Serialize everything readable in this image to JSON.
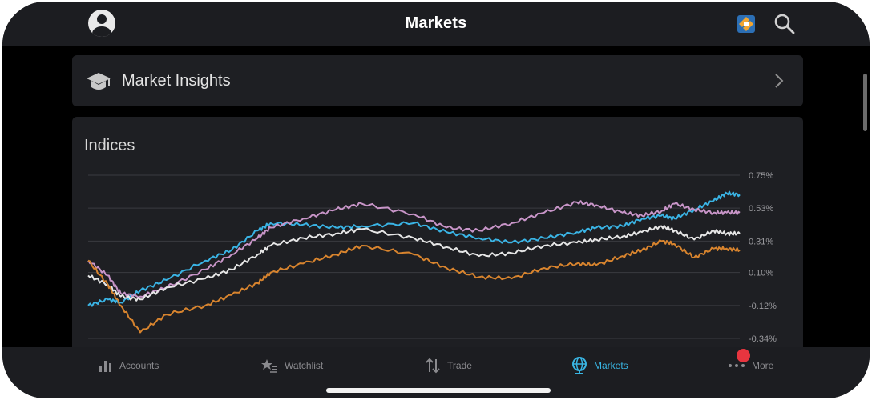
{
  "header": {
    "title": "Markets"
  },
  "icons": {
    "avatar": "avatar-icon",
    "logo": "app-logo-icon",
    "search": "search-icon",
    "insights": "graduation-cap-icon",
    "chevron": "chevron-right-icon"
  },
  "market_insights": {
    "label": "Market Insights"
  },
  "indices": {
    "title": "Indices"
  },
  "chart_data": {
    "type": "line",
    "title": "Indices",
    "y_ticks": [
      "0.75%",
      "0.53%",
      "0.31%",
      "0.10%",
      "-0.12%",
      "-0.34%"
    ],
    "y_tick_values": [
      0.75,
      0.53,
      0.31,
      0.1,
      -0.12,
      -0.34
    ],
    "ylim": [
      -0.34,
      0.75
    ],
    "grid": true,
    "x_range": [
      0,
      100
    ],
    "series": [
      {
        "color": "#3ab4e5",
        "x": [
          0,
          3,
          5,
          8,
          12,
          18,
          22,
          26,
          28,
          33,
          38,
          42,
          50,
          55,
          60,
          65,
          70,
          75,
          78,
          82,
          85,
          88,
          90,
          93,
          96,
          98,
          100
        ],
        "values": [
          -0.12,
          -0.08,
          -0.1,
          -0.02,
          0.05,
          0.18,
          0.25,
          0.38,
          0.43,
          0.42,
          0.4,
          0.41,
          0.43,
          0.37,
          0.33,
          0.3,
          0.33,
          0.37,
          0.4,
          0.41,
          0.46,
          0.48,
          0.46,
          0.52,
          0.58,
          0.63,
          0.62
        ]
      },
      {
        "color": "#c895c8",
        "x": [
          0,
          3,
          5,
          8,
          12,
          18,
          22,
          26,
          28,
          33,
          38,
          42,
          50,
          55,
          60,
          65,
          70,
          75,
          78,
          82,
          85,
          88,
          90,
          93,
          96,
          98,
          100
        ],
        "values": [
          0.18,
          0.08,
          -0.04,
          -0.06,
          0.0,
          0.12,
          0.22,
          0.33,
          0.4,
          0.46,
          0.52,
          0.56,
          0.49,
          0.4,
          0.38,
          0.43,
          0.5,
          0.57,
          0.55,
          0.5,
          0.48,
          0.51,
          0.56,
          0.52,
          0.5,
          0.5,
          0.5
        ]
      },
      {
        "color": "#e6e6e6",
        "x": [
          0,
          3,
          5,
          8,
          12,
          18,
          22,
          26,
          28,
          33,
          38,
          42,
          50,
          55,
          60,
          65,
          70,
          75,
          78,
          82,
          85,
          88,
          90,
          93,
          96,
          98,
          100
        ],
        "values": [
          0.08,
          0.02,
          -0.06,
          -0.08,
          0.0,
          0.06,
          0.12,
          0.22,
          0.28,
          0.33,
          0.36,
          0.39,
          0.33,
          0.27,
          0.21,
          0.23,
          0.28,
          0.3,
          0.32,
          0.34,
          0.37,
          0.41,
          0.38,
          0.32,
          0.38,
          0.36,
          0.36
        ]
      },
      {
        "color": "#d8842e",
        "x": [
          0,
          3,
          5,
          8,
          12,
          18,
          22,
          26,
          28,
          33,
          38,
          42,
          50,
          55,
          60,
          65,
          70,
          75,
          78,
          82,
          85,
          88,
          90,
          93,
          96,
          98,
          100
        ],
        "values": [
          0.18,
          0.02,
          -0.12,
          -0.3,
          -0.18,
          -0.12,
          -0.05,
          0.03,
          0.1,
          0.16,
          0.22,
          0.28,
          0.22,
          0.13,
          0.07,
          0.06,
          0.13,
          0.16,
          0.15,
          0.21,
          0.25,
          0.31,
          0.29,
          0.2,
          0.26,
          0.26,
          0.25
        ]
      }
    ]
  },
  "tabs": [
    {
      "label": "Accounts",
      "icon": "bar-chart-icon",
      "active": false
    },
    {
      "label": "Watchlist",
      "icon": "star-list-icon",
      "active": false
    },
    {
      "label": "Trade",
      "icon": "swap-arrows-icon",
      "active": false
    },
    {
      "label": "Markets",
      "icon": "globe-icon",
      "active": true
    },
    {
      "label": "More",
      "icon": "ellipsis-icon",
      "active": false
    }
  ],
  "colors": {
    "accent": "#39b5e3",
    "badge": "#e8353f",
    "card": "#1e1f23",
    "bar": "#1c1d21"
  }
}
